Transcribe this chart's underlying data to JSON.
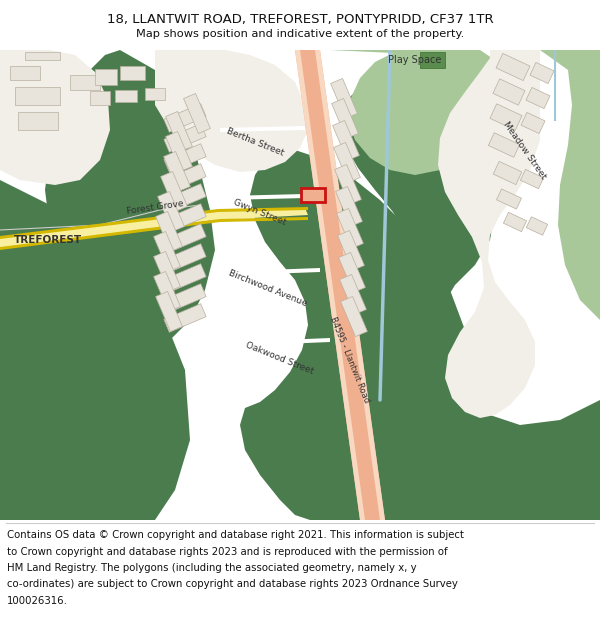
{
  "title_line1": "18, LLANTWIT ROAD, TREFOREST, PONTYPRIDD, CF37 1TR",
  "title_line2": "Map shows position and indicative extent of the property.",
  "footer_lines": [
    "Contains OS data © Crown copyright and database right 2021. This information is subject",
    "to Crown copyright and database rights 2023 and is reproduced with the permission of",
    "HM Land Registry. The polygons (including the associated geometry, namely x, y",
    "co-ordinates) are subject to Crown copyright and database rights 2023 Ordnance Survey",
    "100026316."
  ],
  "bg_white": "#ffffff",
  "map_green_dark": "#4a7c4e",
  "map_green_light": "#8fbc6e",
  "map_green_play": "#a8c89a",
  "map_cream": "#f2efe9",
  "map_road_salmon": "#f0b090",
  "map_road_yellow": "#f5e070",
  "map_road_yellow2": "#e8c840",
  "building_fill": "#e8e4dc",
  "building_edge": "#b0a898",
  "highlight_red": "#cc1111",
  "water_blue": "#9ec8d8",
  "text_dark": "#333333",
  "line_gray": "#cccccc"
}
